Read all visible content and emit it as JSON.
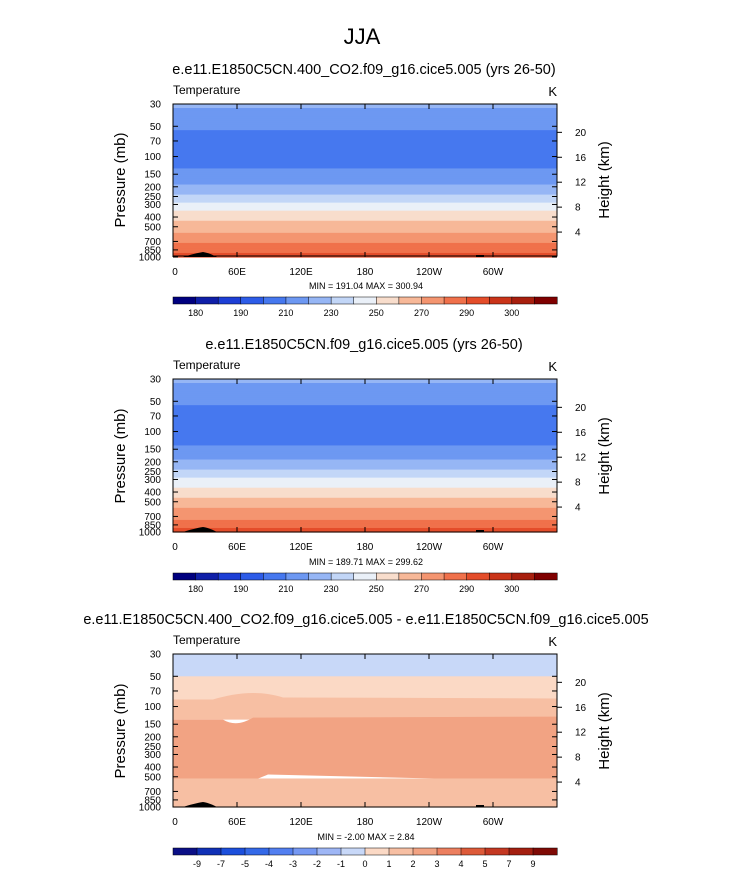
{
  "figure_title": "JJA",
  "chart_data": [
    {
      "type": "heatmap",
      "title": "e.e11.E1850C5CN.400_CO2.f09_g16.cice5.005 (yrs 26-50)",
      "variable": "Temperature",
      "units": "K",
      "ylabel": "Pressure (mb)",
      "y2label": "Height (km)",
      "y_ticks": [
        "30",
        "50",
        "70",
        "100",
        "150",
        "200",
        "250",
        "300",
        "400",
        "500",
        "700",
        "850",
        "1000"
      ],
      "y2_ticks": [
        "20",
        "16",
        "12",
        "8",
        "4"
      ],
      "x_ticks": [
        "0",
        "60E",
        "120E",
        "180",
        "120W",
        "60W"
      ],
      "stats": "MIN = 191.04  MAX = 300.94",
      "colorbar_labels": [
        "180",
        "190",
        "210",
        "230",
        "250",
        "270",
        "290",
        "300"
      ],
      "profile_p": [
        30,
        50,
        70,
        100,
        150,
        200,
        250,
        300,
        400,
        500,
        700,
        850,
        1000
      ],
      "profile_t": [
        222,
        212,
        204,
        202,
        214,
        222,
        233,
        242,
        256,
        265,
        279,
        287,
        296
      ]
    },
    {
      "type": "heatmap",
      "title": "e.e11.E1850C5CN.f09_g16.cice5.005 (yrs 26-50)",
      "variable": "Temperature",
      "units": "K",
      "ylabel": "Pressure (mb)",
      "y2label": "Height (km)",
      "y_ticks": [
        "30",
        "50",
        "70",
        "100",
        "150",
        "200",
        "250",
        "300",
        "400",
        "500",
        "700",
        "850",
        "1000"
      ],
      "y2_ticks": [
        "20",
        "16",
        "12",
        "8",
        "4"
      ],
      "x_ticks": [
        "0",
        "60E",
        "120E",
        "180",
        "120W",
        "60W"
      ],
      "stats": "MIN = 189.71  MAX = 299.62",
      "colorbar_labels": [
        "180",
        "190",
        "210",
        "230",
        "250",
        "270",
        "290",
        "300"
      ],
      "profile_p": [
        30,
        50,
        70,
        100,
        150,
        200,
        250,
        300,
        400,
        500,
        700,
        850,
        1000
      ],
      "profile_t": [
        222,
        212,
        204,
        201,
        213,
        221,
        232,
        241,
        255,
        264,
        277,
        285,
        294
      ]
    },
    {
      "type": "heatmap",
      "title": "e.e11.E1850C5CN.400_CO2.f09_g16.cice5.005 - e.e11.E1850C5CN.f09_g16.cice5.005",
      "variable": "Temperature",
      "units": "K",
      "ylabel": "Pressure (mb)",
      "y2label": "Height (km)",
      "y_ticks": [
        "30",
        "50",
        "70",
        "100",
        "150",
        "200",
        "250",
        "300",
        "400",
        "500",
        "700",
        "850",
        "1000"
      ],
      "y2_ticks": [
        "20",
        "16",
        "12",
        "8",
        "4"
      ],
      "x_ticks": [
        "0",
        "60E",
        "120E",
        "180",
        "120W",
        "60W"
      ],
      "stats": "MIN = -2.00  MAX =  2.84",
      "colorbar_labels": [
        "-9",
        "-7",
        "-5",
        "-4",
        "-3",
        "-2",
        "-1",
        "0",
        "1",
        "2",
        "3",
        "4",
        "5",
        "7",
        "9"
      ],
      "diff_bands": [
        {
          "from_p": 30,
          "to_p": 50,
          "level": -1
        },
        {
          "from_p": 50,
          "to_p": 85,
          "level": 0
        },
        {
          "from_p": 85,
          "to_p": 135,
          "level": 1
        },
        {
          "from_p": 135,
          "to_p": 520,
          "level": 2
        },
        {
          "from_p": 520,
          "to_p": 1000,
          "level": 1
        }
      ]
    }
  ],
  "colors": {
    "abs_palette": [
      "#00007f",
      "#0f1fa8",
      "#1d3fd6",
      "#2d5ce8",
      "#4678ef",
      "#6d98f2",
      "#96b6f5",
      "#c2d6f7",
      "#eaf0f8",
      "#f8ddcc",
      "#f7b898",
      "#f49570",
      "#f0714b",
      "#e44d2a",
      "#ca3419",
      "#a81f0e",
      "#7f0000"
    ],
    "diff_palette": [
      "#0b0f86",
      "#1030b6",
      "#1c4fdc",
      "#3469e8",
      "#527ff0",
      "#7598f3",
      "#9eb6f5",
      "#c8d8f8",
      "#fbd9c5",
      "#f7bfa3",
      "#f2a383",
      "#ec7f5f",
      "#dd5a39",
      "#c43822",
      "#a41f10",
      "#7f0a05"
    ]
  }
}
